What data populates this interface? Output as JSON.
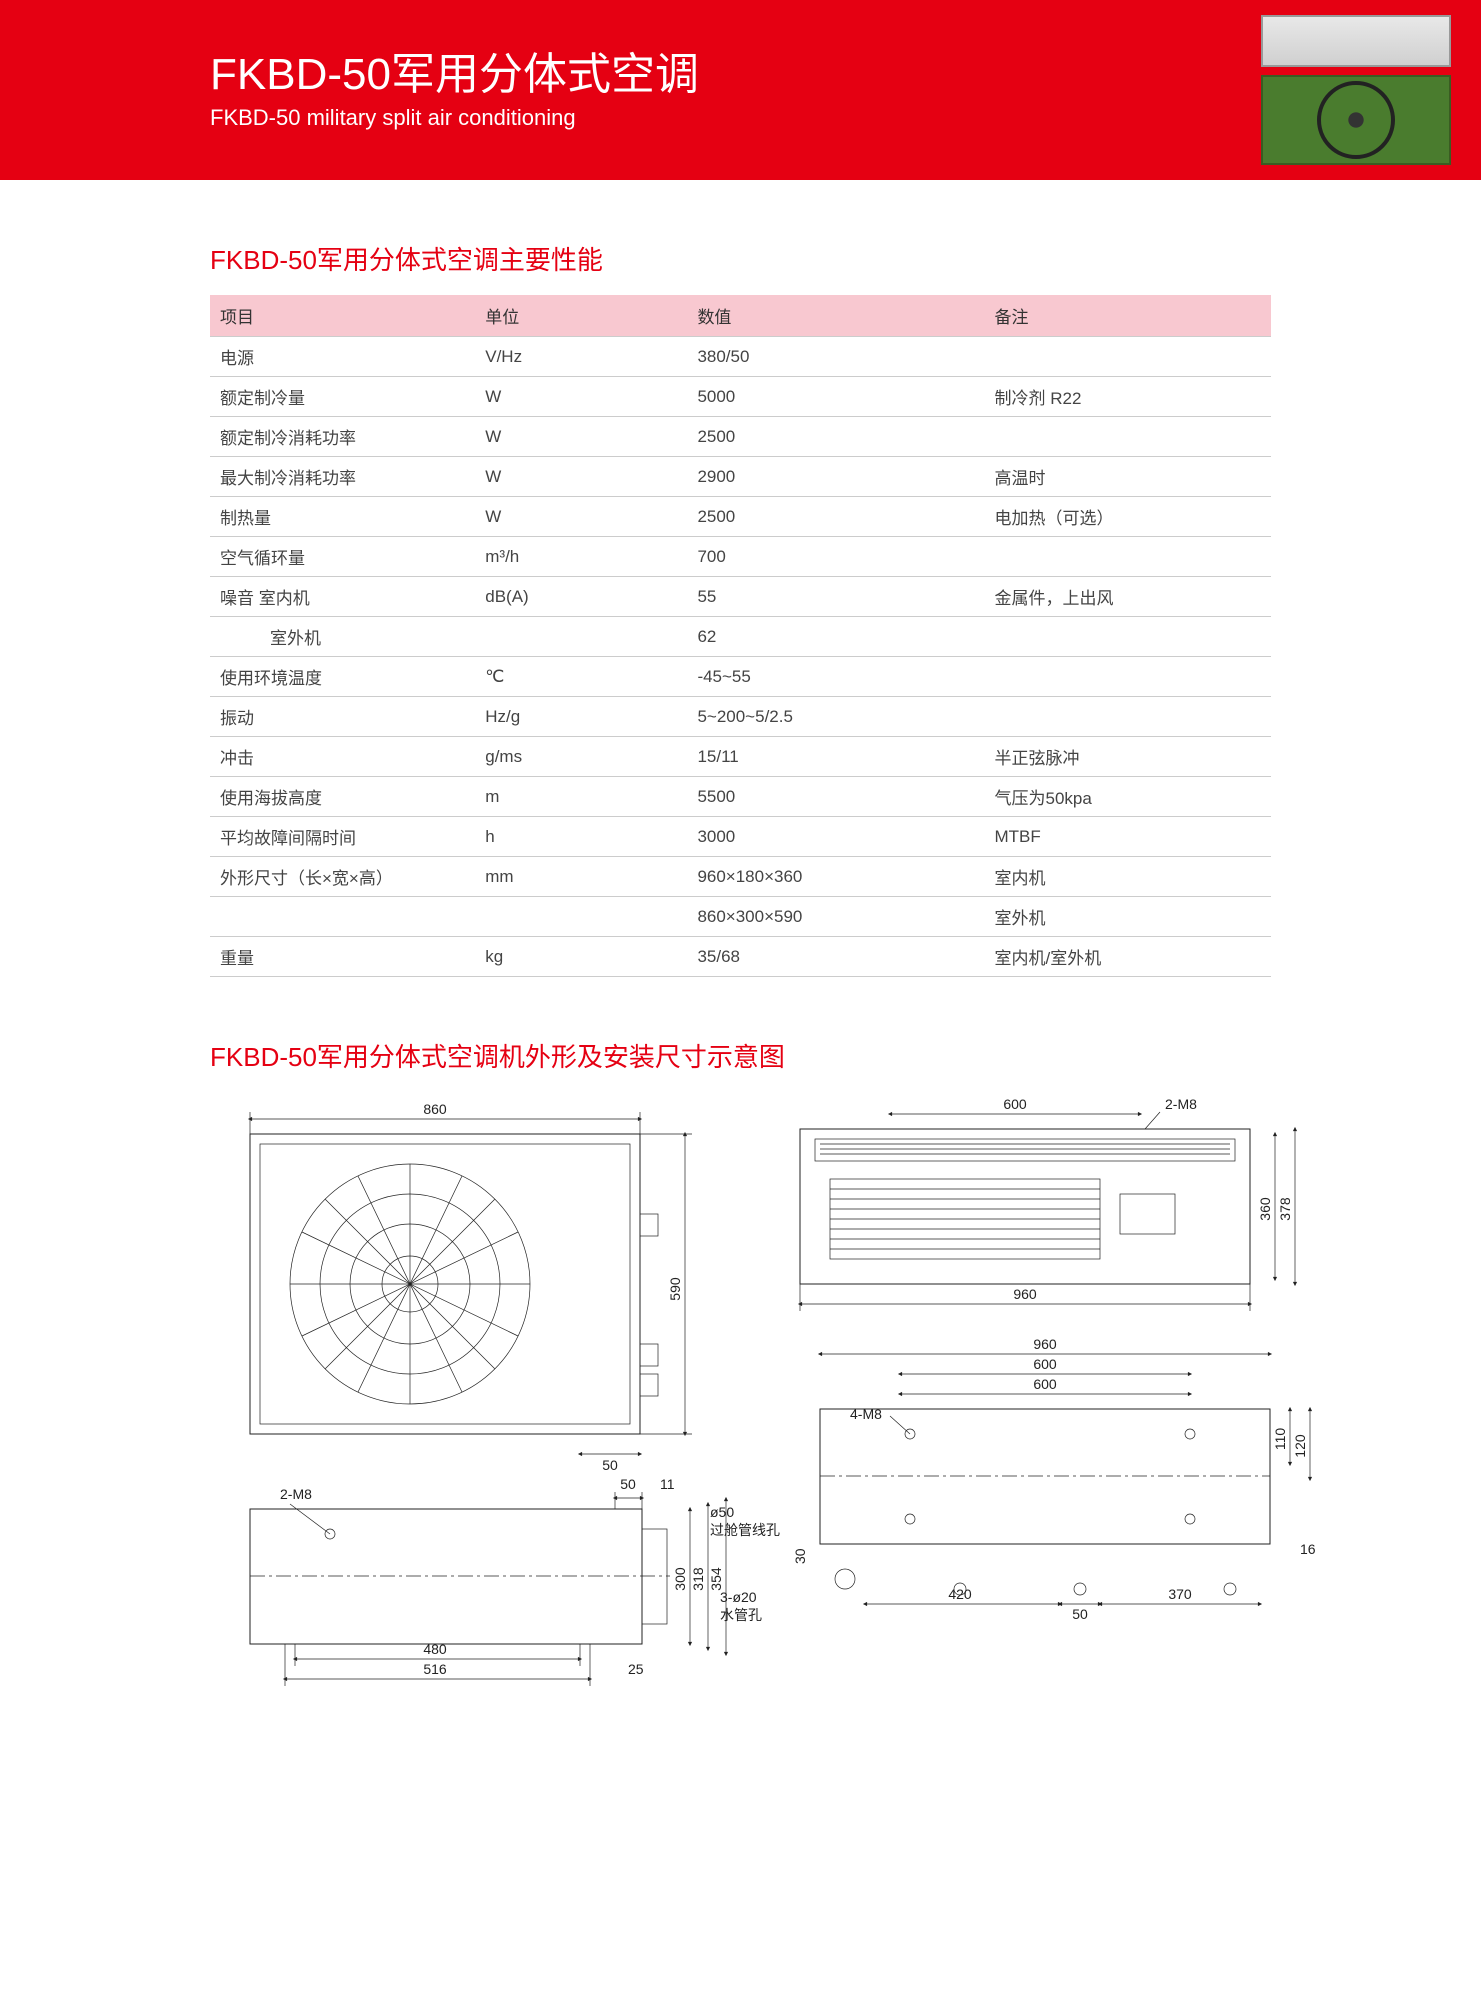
{
  "hero": {
    "title_cn": "FKBD-50军用分体式空调",
    "title_en": "FKBD-50 military split air conditioning"
  },
  "spec_section": {
    "title": "FKBD-50军用分体式空调主要性能",
    "headers": [
      "项目",
      "单位",
      "数值",
      "备注"
    ],
    "rows": [
      {
        "c0": "电源",
        "c1": "V/Hz",
        "c2": "380/50",
        "c3": ""
      },
      {
        "c0": "额定制冷量",
        "c1": "W",
        "c2": "5000",
        "c3": "制冷剂 R22"
      },
      {
        "c0": "额定制冷消耗功率",
        "c1": "W",
        "c2": "2500",
        "c3": ""
      },
      {
        "c0": "最大制冷消耗功率",
        "c1": "W",
        "c2": "2900",
        "c3": "高温时"
      },
      {
        "c0": "制热量",
        "c1": "W",
        "c2": "2500",
        "c3": "电加热（可选）"
      },
      {
        "c0": "空气循环量",
        "c1": "m³/h",
        "c2": "700",
        "c3": ""
      },
      {
        "c0": "噪音  室内机",
        "c1": "dB(A)",
        "c2": "55",
        "c3": "金属件，上出风"
      },
      {
        "c0": "          室外机",
        "c1": "",
        "c2": "62",
        "c3": ""
      },
      {
        "c0": "使用环境温度",
        "c1": "℃",
        "c2": "-45~55",
        "c3": ""
      },
      {
        "c0": "振动",
        "c1": "Hz/g",
        "c2": "5~200~5/2.5",
        "c3": ""
      },
      {
        "c0": "冲击",
        "c1": "g/ms",
        "c2": "15/11",
        "c3": "半正弦脉冲"
      },
      {
        "c0": "使用海拔高度",
        "c1": "m",
        "c2": "5500",
        "c3": "气压为50kpa"
      },
      {
        "c0": "平均故障间隔时间",
        "c1": "h",
        "c2": "3000",
        "c3": "MTBF"
      },
      {
        "c0": "外形尺寸（长×宽×高）",
        "c1": "mm",
        "c2": "960×180×360",
        "c3": "室内机"
      },
      {
        "c0": "",
        "c1": "",
        "c2": "860×300×590",
        "c3": "室外机"
      },
      {
        "c0": "重量",
        "c1": "kg",
        "c2": "35/68",
        "c3": "室内机/室外机"
      }
    ]
  },
  "diagram_section": {
    "title": "FKBD-50军用分体式空调机外形及安装尺寸示意图",
    "outdoor_front": {
      "width": "860",
      "height": "590",
      "bottom_gap": "50"
    },
    "outdoor_top": {
      "m8": "2-M8",
      "d480": "480",
      "d516": "516",
      "h300": "300",
      "h318": "318",
      "h354": "354",
      "d50": "50",
      "d11": "11",
      "d25": "25"
    },
    "indoor_front": {
      "d600": "600",
      "m8": "2-M8",
      "d960": "960",
      "h360": "360",
      "h378": "378"
    },
    "indoor_mount": {
      "d960": "960",
      "d600a": "600",
      "d600b": "600",
      "m8": "4-M8",
      "h110": "110",
      "h120": "120",
      "h16": "16",
      "d420": "420",
      "d50": "50",
      "d370": "370",
      "d30": "30",
      "hole50": "ø50",
      "hole50_txt": "过舱管线孔",
      "hole20": "3-ø20",
      "hole20_txt": "水管孔"
    }
  }
}
